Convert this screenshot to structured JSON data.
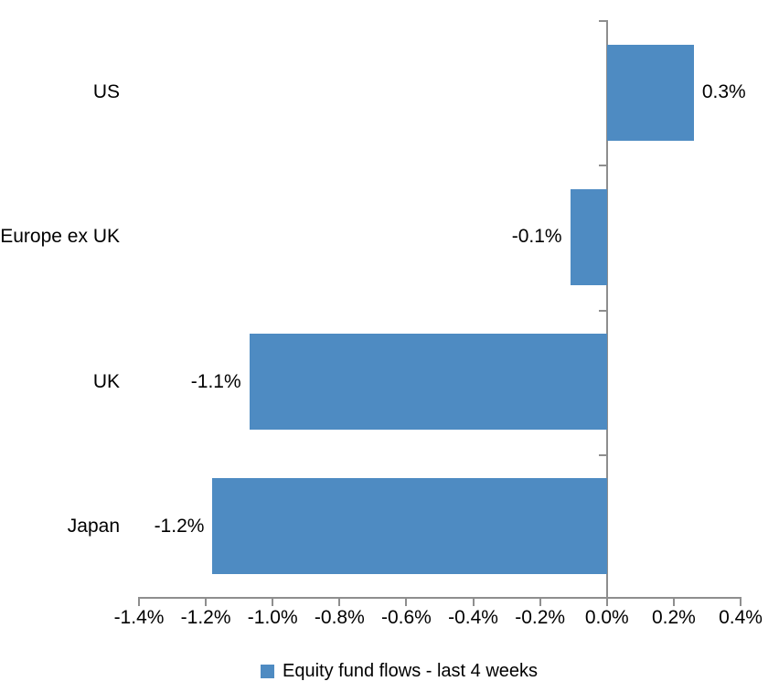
{
  "chart_data": {
    "type": "bar",
    "orientation": "horizontal",
    "title": "",
    "xlabel": "",
    "ylabel": "",
    "categories": [
      "US",
      "Europe ex UK",
      "UK",
      "Japan"
    ],
    "values": [
      0.3,
      -0.1,
      -1.1,
      -1.2
    ],
    "data_labels": [
      "0.3%",
      "-0.1%",
      "-1.1%",
      "-1.2%"
    ],
    "plotted_values": [
      0.26,
      -0.11,
      -1.07,
      -1.18
    ],
    "unit": "percent",
    "series": [
      {
        "name": "Equity fund flows - last 4 weeks",
        "values": [
          0.3,
          -0.1,
          -1.1,
          -1.2
        ]
      }
    ],
    "xlim": [
      -1.4,
      0.4
    ],
    "x_tick_step": 0.2,
    "x_tick_labels": [
      "-1.4%",
      "-1.2%",
      "-1.0%",
      "-0.8%",
      "-0.6%",
      "-0.4%",
      "-0.2%",
      "0.0%",
      "0.2%",
      "0.4%"
    ],
    "grid": false,
    "legend_position": "bottom",
    "colors": {
      "bar": "#4E8BC2",
      "axis": "#8E8E8E",
      "text": "#000000",
      "background": "#FFFFFF"
    }
  },
  "legend": {
    "label": "Equity fund flows - last 4 weeks"
  }
}
